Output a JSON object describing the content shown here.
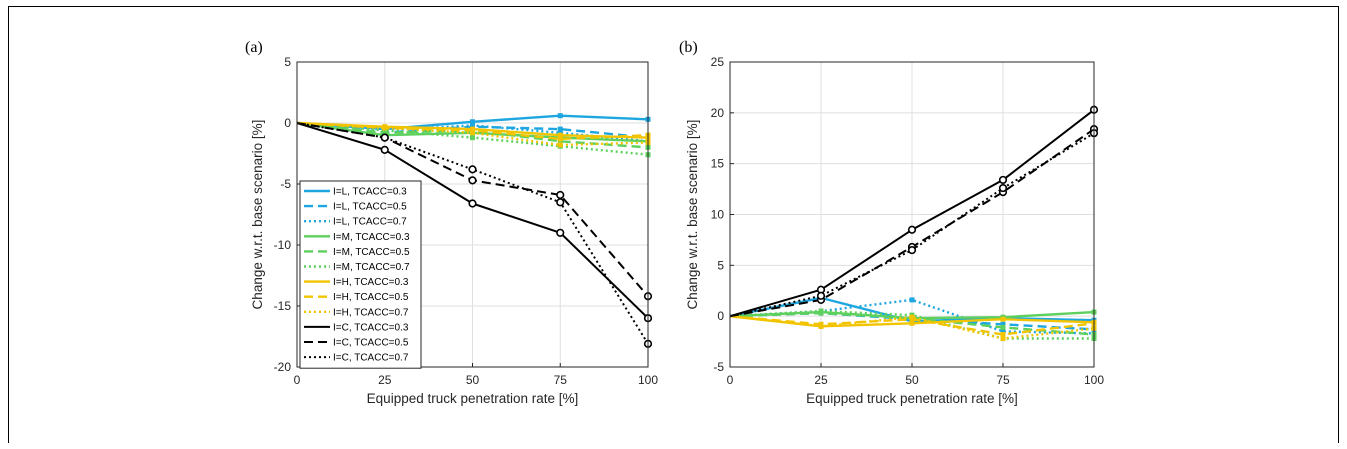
{
  "chart_data": [
    {
      "type": "line",
      "panel_label": "(a)",
      "xlabel": "Equipped truck penetration rate [%]",
      "ylabel": "Change w.r.t. base scenario [%]",
      "xlim": [
        0,
        100
      ],
      "ylim": [
        -20,
        5
      ],
      "xticks": [
        0,
        25,
        50,
        75,
        100
      ],
      "yticks": [
        -20,
        -15,
        -10,
        -5,
        0,
        5
      ],
      "grid": true,
      "legend_position": "lower-left",
      "x": [
        0,
        25,
        50,
        75,
        100
      ],
      "series": [
        {
          "name": "I=L, TCACC=0.3",
          "color": "#1ea6e0",
          "dash": "solid",
          "values": [
            0,
            -0.5,
            0.1,
            0.6,
            0.3
          ]
        },
        {
          "name": "I=L, TCACC=0.5",
          "color": "#1ea6e0",
          "dash": "dashed",
          "values": [
            0,
            -0.8,
            -0.3,
            -0.5,
            -1.2
          ]
        },
        {
          "name": "I=L, TCACC=0.7",
          "color": "#1ea6e0",
          "dash": "dotted",
          "values": [
            0,
            -0.6,
            -0.2,
            -0.8,
            -1.5
          ]
        },
        {
          "name": "I=M, TCACC=0.3",
          "color": "#5dd05d",
          "dash": "solid",
          "values": [
            0,
            -1.0,
            -0.8,
            -1.2,
            -1.5
          ]
        },
        {
          "name": "I=M, TCACC=0.5",
          "color": "#5dd05d",
          "dash": "dashed",
          "values": [
            0,
            -0.8,
            -0.6,
            -1.5,
            -2.0
          ]
        },
        {
          "name": "I=M, TCACC=0.7",
          "color": "#5dd05d",
          "dash": "dotted",
          "values": [
            0,
            -0.6,
            -1.2,
            -1.9,
            -2.6
          ]
        },
        {
          "name": "I=H, TCACC=0.3",
          "color": "#f2c400",
          "dash": "solid",
          "values": [
            0,
            -0.3,
            -0.5,
            -1.0,
            -1.2
          ]
        },
        {
          "name": "I=H, TCACC=0.5",
          "color": "#f2c400",
          "dash": "dashed",
          "values": [
            0,
            -0.4,
            -0.6,
            -1.3,
            -1.0
          ]
        },
        {
          "name": "I=H, TCACC=0.7",
          "color": "#f2c400",
          "dash": "dotted",
          "values": [
            0,
            -0.4,
            -0.8,
            -1.8,
            -1.6
          ]
        },
        {
          "name": "I=C, TCACC=0.3",
          "color": "#000000",
          "dash": "solid",
          "values": [
            0,
            -2.2,
            -6.6,
            -9.0,
            -16.0
          ]
        },
        {
          "name": "I=C, TCACC=0.5",
          "color": "#000000",
          "dash": "dashed",
          "values": [
            0,
            -1.2,
            -4.7,
            -5.9,
            -14.2
          ]
        },
        {
          "name": "I=C, TCACC=0.7",
          "color": "#000000",
          "dash": "dotted",
          "values": [
            0,
            -1.2,
            -3.8,
            -6.5,
            -18.1
          ]
        }
      ]
    },
    {
      "type": "line",
      "panel_label": "(b)",
      "xlabel": "Equipped truck penetration rate [%]",
      "ylabel": "Change w.r.t. base scenario [%]",
      "xlim": [
        0,
        100
      ],
      "ylim": [
        -5,
        25
      ],
      "xticks": [
        0,
        25,
        50,
        75,
        100
      ],
      "yticks": [
        -5,
        0,
        5,
        10,
        15,
        20,
        25
      ],
      "grid": true,
      "x": [
        0,
        25,
        50,
        75,
        100
      ],
      "series": [
        {
          "name": "I=L, TCACC=0.3",
          "color": "#1ea6e0",
          "dash": "solid",
          "values": [
            0,
            1.8,
            -0.5,
            -0.2,
            -0.4
          ]
        },
        {
          "name": "I=L, TCACC=0.5",
          "color": "#1ea6e0",
          "dash": "dashed",
          "values": [
            0,
            0.3,
            -0.3,
            -0.8,
            -1.3
          ]
        },
        {
          "name": "I=L, TCACC=0.7",
          "color": "#1ea6e0",
          "dash": "dotted",
          "values": [
            0,
            0.5,
            1.6,
            -1.5,
            -1.7
          ]
        },
        {
          "name": "I=M, TCACC=0.3",
          "color": "#5dd05d",
          "dash": "solid",
          "values": [
            0,
            0.4,
            -0.2,
            -0.1,
            0.4
          ]
        },
        {
          "name": "I=M, TCACC=0.5",
          "color": "#5dd05d",
          "dash": "dashed",
          "values": [
            0,
            0.3,
            -0.2,
            -1.1,
            -1.8
          ]
        },
        {
          "name": "I=M, TCACC=0.7",
          "color": "#5dd05d",
          "dash": "dotted",
          "values": [
            0,
            0.5,
            0.1,
            -2.2,
            -2.2
          ]
        },
        {
          "name": "I=H, TCACC=0.3",
          "color": "#f2c400",
          "dash": "solid",
          "values": [
            0,
            -1.0,
            -0.7,
            -0.3,
            -0.6
          ]
        },
        {
          "name": "I=H, TCACC=0.5",
          "color": "#f2c400",
          "dash": "dashed",
          "values": [
            0,
            -0.8,
            -0.3,
            -1.8,
            -0.7
          ]
        },
        {
          "name": "I=H, TCACC=0.7",
          "color": "#f2c400",
          "dash": "dotted",
          "values": [
            0,
            -1.0,
            -0.1,
            -2.2,
            -1.2
          ]
        },
        {
          "name": "I=C, TCACC=0.3",
          "color": "#000000",
          "dash": "solid",
          "values": [
            0,
            2.6,
            8.5,
            13.4,
            20.3
          ]
        },
        {
          "name": "I=C, TCACC=0.5",
          "color": "#000000",
          "dash": "dashed",
          "values": [
            0,
            1.6,
            6.8,
            12.2,
            18.4
          ]
        },
        {
          "name": "I=C, TCACC=0.7",
          "color": "#000000",
          "dash": "dotted",
          "values": [
            0,
            2.0,
            6.5,
            12.6,
            18.0
          ]
        }
      ]
    }
  ]
}
